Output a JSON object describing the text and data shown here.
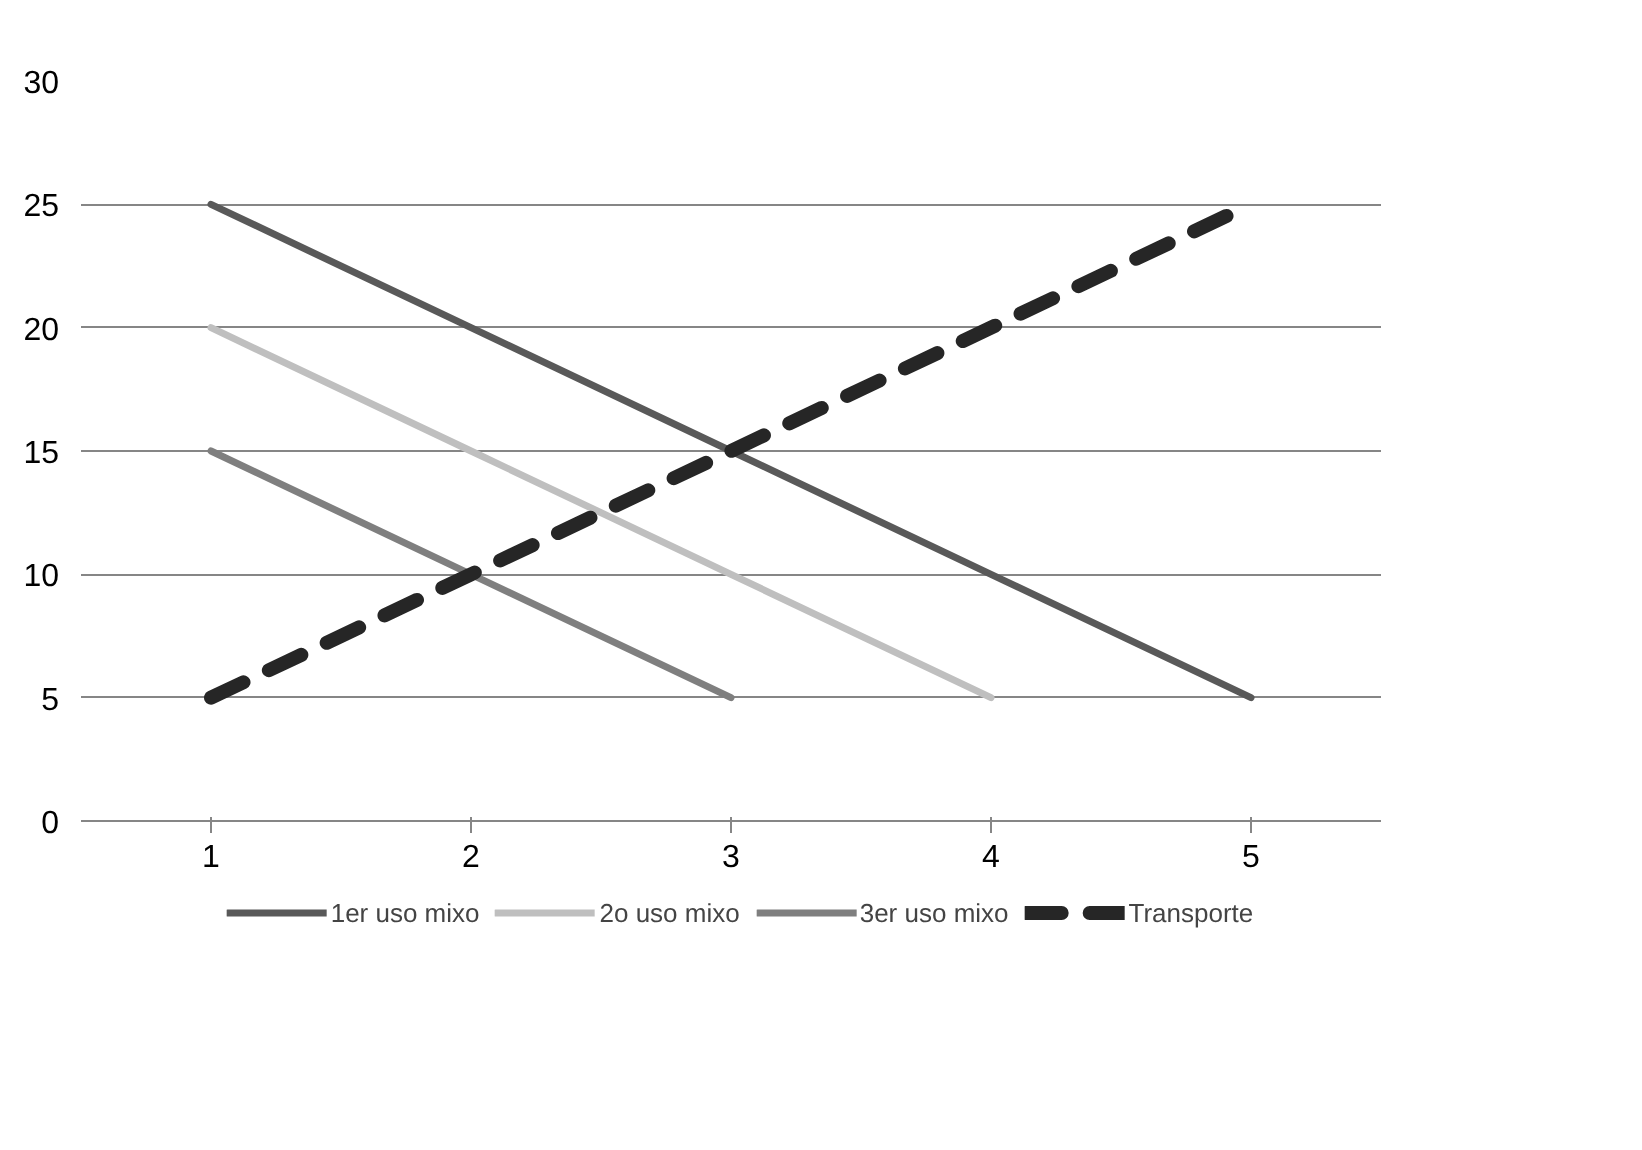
{
  "chart_data": {
    "type": "line",
    "categories": [
      "1",
      "2",
      "3",
      "4",
      "5"
    ],
    "series": [
      {
        "name": "1er uso mixo",
        "color": "#595959",
        "values": [
          25,
          20,
          15,
          10,
          5
        ]
      },
      {
        "name": "2o uso mixo",
        "color": "#bfbfbf",
        "values": [
          20,
          15,
          10,
          5,
          null
        ]
      },
      {
        "name": "3er uso mixo",
        "color": "#7f7f7f",
        "values": [
          15,
          10,
          5,
          null,
          null
        ]
      },
      {
        "name": "Transporte",
        "color": "#262626",
        "line_style": "dashed",
        "values": [
          5,
          10,
          15,
          20,
          25
        ]
      }
    ],
    "ylim": [
      0,
      30
    ],
    "yticks": [
      0,
      5,
      10,
      15,
      20,
      25,
      30
    ],
    "grid": "y",
    "legend": "bottom",
    "marker": "none",
    "line_style": "solid"
  }
}
